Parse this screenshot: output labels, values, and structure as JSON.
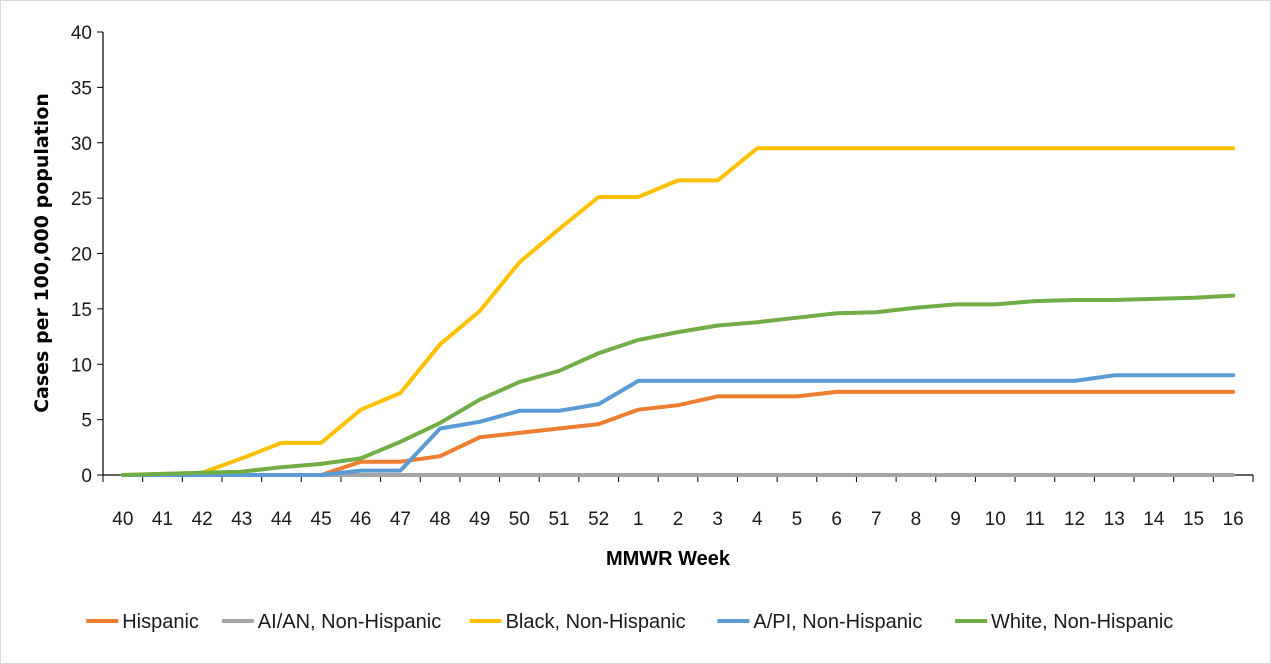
{
  "chart_data": {
    "type": "line",
    "title": "",
    "xlabel": "MMWR Week",
    "ylabel": "Cases per 100,000 population",
    "ylim": [
      0,
      40
    ],
    "yticks": [
      0,
      5,
      10,
      15,
      20,
      25,
      30,
      35,
      40
    ],
    "grid": false,
    "legend_position": "bottom",
    "categories": [
      "40",
      "41",
      "42",
      "43",
      "44",
      "45",
      "46",
      "47",
      "48",
      "49",
      "50",
      "51",
      "52",
      "1",
      "2",
      "3",
      "4",
      "5",
      "6",
      "7",
      "8",
      "9",
      "10",
      "11",
      "12",
      "13",
      "14",
      "15",
      "16"
    ],
    "series": [
      {
        "name": "Hispanic",
        "color": "#ED7D31",
        "values": [
          0,
          0,
          0,
          0,
          0,
          0,
          1.2,
          1.2,
          1.7,
          3.4,
          3.8,
          4.2,
          4.6,
          5.9,
          6.3,
          7.1,
          7.1,
          7.1,
          7.5,
          7.5,
          7.5,
          7.5,
          7.5,
          7.5,
          7.5,
          7.5,
          7.5,
          7.5,
          7.5
        ]
      },
      {
        "name": "AI/AN, Non-Hispanic",
        "color": "#A5A5A5",
        "values": [
          0,
          0,
          0,
          0,
          0,
          0,
          0,
          0,
          0,
          0,
          0,
          0,
          0,
          0,
          0,
          0,
          0,
          0,
          0,
          0,
          0,
          0,
          0,
          0,
          0,
          0,
          0,
          0,
          0
        ]
      },
      {
        "name": "Black, Non-Hispanic",
        "color": "#FFC000",
        "values": [
          0,
          0.1,
          0.2,
          1.5,
          2.9,
          2.9,
          5.9,
          7.4,
          11.8,
          14.8,
          19.2,
          22.2,
          25.1,
          25.1,
          26.6,
          26.6,
          29.5,
          29.5,
          29.5,
          29.5,
          29.5,
          29.5,
          29.5,
          29.5,
          29.5,
          29.5,
          29.5,
          29.5,
          29.5
        ]
      },
      {
        "name": "A/PI, Non-Hispanic",
        "color": "#5B9BD5",
        "values": [
          0,
          0,
          0,
          0,
          0,
          0,
          0.4,
          0.4,
          4.2,
          4.8,
          5.8,
          5.8,
          6.4,
          8.5,
          8.5,
          8.5,
          8.5,
          8.5,
          8.5,
          8.5,
          8.5,
          8.5,
          8.5,
          8.5,
          8.5,
          9.0,
          9.0,
          9.0,
          9.0
        ]
      },
      {
        "name": "White, Non-Hispanic",
        "color": "#70AD47",
        "values": [
          0,
          0.1,
          0.2,
          0.3,
          0.7,
          1.0,
          1.5,
          3.0,
          4.7,
          6.8,
          8.4,
          9.4,
          11.0,
          12.2,
          12.9,
          13.5,
          13.8,
          14.2,
          14.6,
          14.7,
          15.1,
          15.4,
          15.4,
          15.7,
          15.8,
          15.8,
          15.9,
          16.0,
          16.2
        ]
      }
    ]
  }
}
